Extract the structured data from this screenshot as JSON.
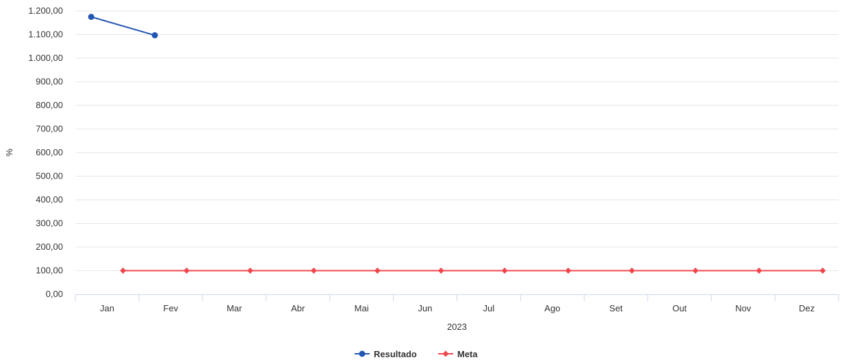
{
  "chart_data": {
    "type": "line",
    "categories": [
      "Jan",
      "Fev",
      "Mar",
      "Abr",
      "Mai",
      "Jun",
      "Jul",
      "Ago",
      "Set",
      "Out",
      "Nov",
      "Dez"
    ],
    "x_group_label": "2023",
    "ylabel": "%",
    "ylim": [
      0,
      1200
    ],
    "y_ticks": [
      "0,00",
      "100,00",
      "200,00",
      "300,00",
      "400,00",
      "500,00",
      "600,00",
      "700,00",
      "800,00",
      "900,00",
      "1.000,00",
      "1.100,00",
      "1.200,00"
    ],
    "y_tick_step": 100,
    "grid": true,
    "legend_position": "bottom-center",
    "series": [
      {
        "name": "Resultado",
        "color": "#2356b3",
        "marker": "circle",
        "offset": "left",
        "values": [
          1175,
          1097,
          null,
          null,
          null,
          null,
          null,
          null,
          null,
          null,
          null,
          null
        ]
      },
      {
        "name": "Meta",
        "color": "#f0474d",
        "marker": "diamond",
        "offset": "right",
        "values": [
          100,
          100,
          100,
          100,
          100,
          100,
          100,
          100,
          100,
          100,
          100,
          100
        ]
      }
    ]
  }
}
